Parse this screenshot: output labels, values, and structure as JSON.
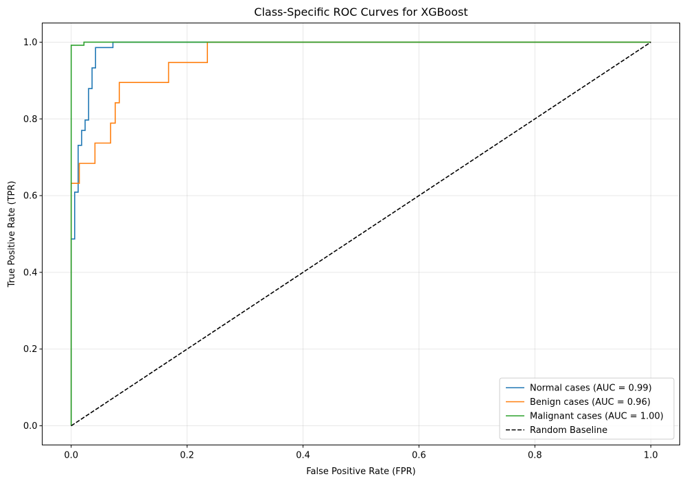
{
  "chart_data": {
    "type": "line",
    "title": "Class-Specific ROC Curves for XGBoost",
    "xlabel": "False Positive Rate (FPR)",
    "ylabel": "True Positive Rate (TPR)",
    "xlim": [
      -0.05,
      1.05
    ],
    "ylim": [
      -0.05,
      1.05
    ],
    "xticks": [
      "0.0",
      "0.2",
      "0.4",
      "0.6",
      "0.8",
      "1.0"
    ],
    "yticks": [
      "0.0",
      "0.2",
      "0.4",
      "0.6",
      "0.8",
      "1.0"
    ],
    "grid": true,
    "legend_position": "lower-right",
    "series": [
      {
        "name": "Normal cases (AUC = 0.99)",
        "color": "#1f77b4",
        "style": "solid",
        "x": [
          0.0,
          0.0,
          0.006,
          0.006,
          0.012,
          0.012,
          0.018,
          0.018,
          0.024,
          0.024,
          0.03,
          0.03,
          0.036,
          0.036,
          0.042,
          0.042,
          0.048,
          0.048,
          0.054,
          0.054,
          0.072,
          0.072,
          1.0
        ],
        "y": [
          0.0,
          0.487,
          0.487,
          0.609,
          0.609,
          0.731,
          0.731,
          0.77,
          0.77,
          0.797,
          0.797,
          0.879,
          0.879,
          0.933,
          0.933,
          0.986,
          0.986,
          0.986,
          0.986,
          0.986,
          0.986,
          1.0,
          1.0
        ]
      },
      {
        "name": "Benign cases (AUC = 0.96)",
        "color": "#ff7f0e",
        "style": "solid",
        "x": [
          0.0,
          0.0,
          0.014,
          0.014,
          0.041,
          0.041,
          0.068,
          0.068,
          0.076,
          0.076,
          0.083,
          0.083,
          0.168,
          0.168,
          0.235,
          0.235,
          1.0
        ],
        "y": [
          0.0,
          0.632,
          0.632,
          0.684,
          0.684,
          0.737,
          0.737,
          0.789,
          0.789,
          0.842,
          0.842,
          0.895,
          0.895,
          0.947,
          0.947,
          1.0,
          1.0
        ]
      },
      {
        "name": "Malignant cases (AUC = 1.00)",
        "color": "#2ca02c",
        "style": "solid",
        "x": [
          0.0,
          0.0,
          0.022,
          0.022,
          1.0
        ],
        "y": [
          0.0,
          0.992,
          0.992,
          1.0,
          1.0
        ]
      },
      {
        "name": "Random Baseline",
        "color": "#000000",
        "style": "dashed",
        "x": [
          0.0,
          1.0
        ],
        "y": [
          0.0,
          1.0
        ]
      }
    ]
  }
}
